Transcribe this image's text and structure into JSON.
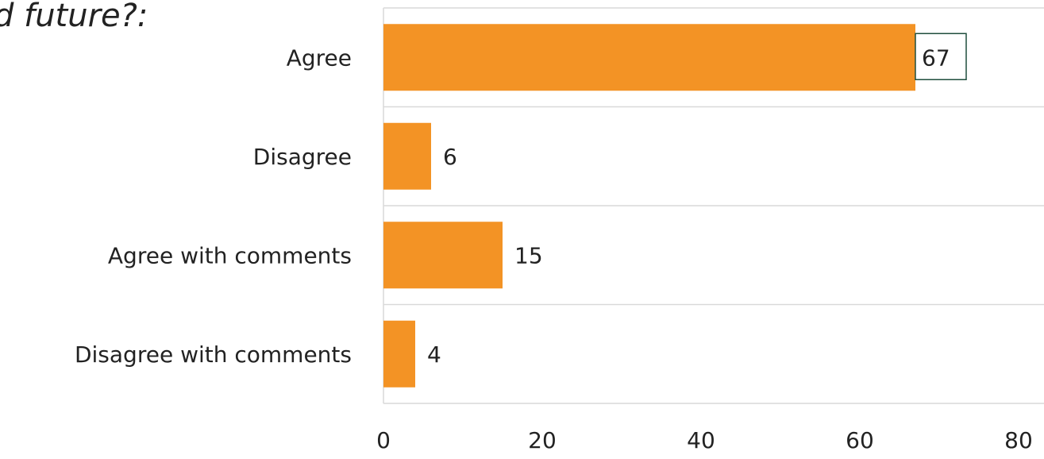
{
  "heading": "d future?:",
  "chart_data": {
    "type": "bar",
    "orientation": "horizontal",
    "categories": [
      "Agree",
      "Disagree",
      "Agree with comments",
      "Disagree with comments"
    ],
    "values": [
      67,
      6,
      15,
      4
    ],
    "data_labels": [
      "67",
      "6",
      "15",
      "4"
    ],
    "xlim": [
      0,
      80
    ],
    "xticks": [
      0,
      20,
      40,
      60,
      80
    ],
    "xtick_labels": [
      "0",
      "20",
      "40",
      "60",
      "80"
    ],
    "grid": true,
    "legend": "none",
    "highlighted_label_index": 0,
    "colors": {
      "bar": "#F39325",
      "grid": "#D9D9D9",
      "highlight_border": "#1F4E3D"
    }
  }
}
